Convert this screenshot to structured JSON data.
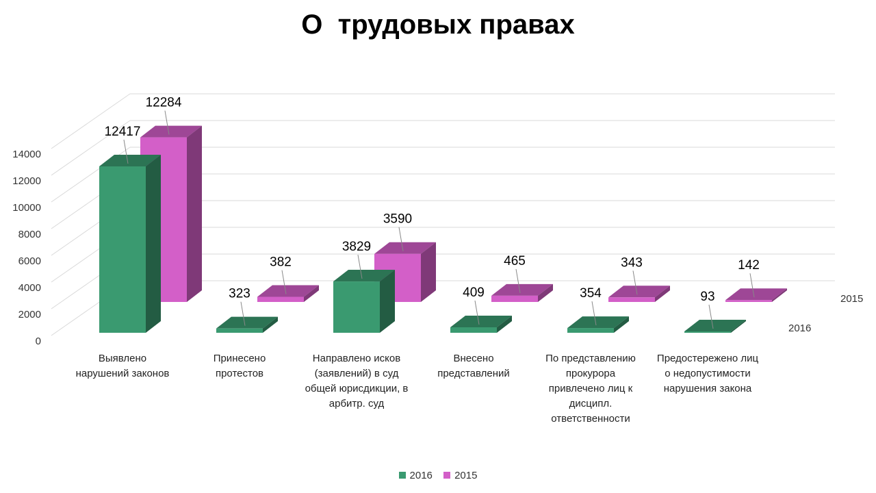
{
  "chart_data": {
    "type": "bar",
    "title": "О  трудовых правах",
    "categories": [
      "Выявлено нарушений законов",
      "Принесено протестов",
      "Направлено исков (заявлений) в суд общей юрисдикции, в арбитр. суд",
      "Внесено представлений",
      "По представлению прокурора привлечено лиц к дисципл. ответственности",
      "Предостережено лиц о недопустимости нарушения  закона"
    ],
    "series": [
      {
        "name": "2016",
        "color": "#3a9a70",
        "values": [
          12417,
          323,
          3829,
          409,
          354,
          93
        ]
      },
      {
        "name": "2015",
        "color": "#d35fc8",
        "values": [
          12284,
          382,
          3590,
          465,
          343,
          142
        ]
      }
    ],
    "yticks": [
      "0",
      "2000",
      "4000",
      "6000",
      "8000",
      "10000",
      "12000",
      "14000"
    ],
    "ylim": [
      0,
      14000
    ],
    "grid": true,
    "three_d": true,
    "legend": "bottom"
  }
}
